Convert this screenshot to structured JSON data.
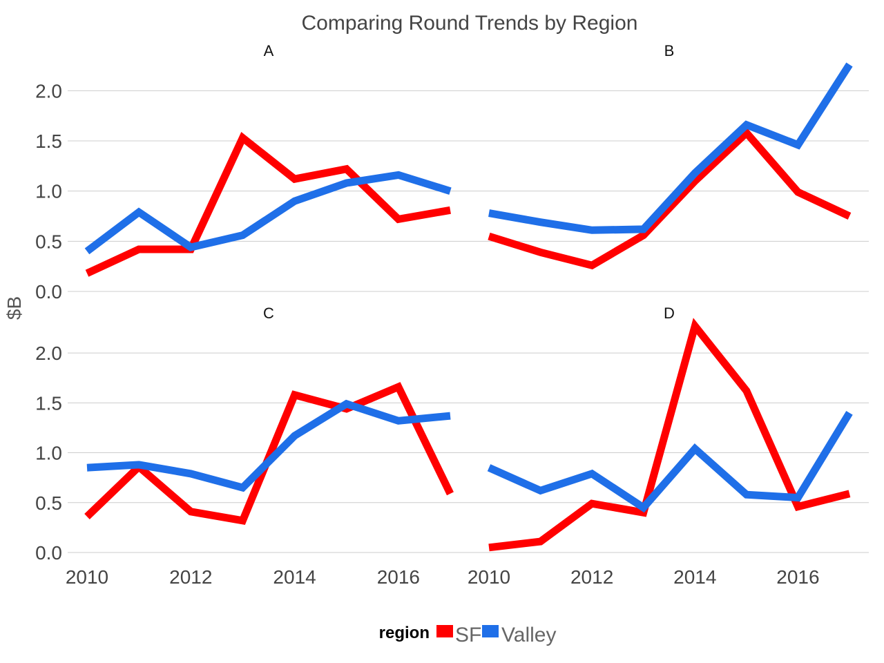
{
  "chart_data": {
    "type": "line",
    "title": "Comparing Round Trends by Region",
    "ylabel": "$B",
    "xlabel": "",
    "ylim": [
      0,
      2.25
    ],
    "yticks": [
      "0.0",
      "0.5",
      "1.0",
      "1.5",
      "2.0"
    ],
    "xticks": [
      "2010",
      "2012",
      "2014",
      "2016"
    ],
    "x": [
      2010,
      2011,
      2012,
      2013,
      2014,
      2015,
      2016,
      2017
    ],
    "legend": {
      "title": "region",
      "position": "bottom",
      "entries": [
        "SF",
        "Valley"
      ]
    },
    "colors": {
      "SF": "#ff0000",
      "Valley": "#1f6fe8"
    },
    "grid": true,
    "facets": [
      {
        "label": "A",
        "series": [
          {
            "name": "SF",
            "values": [
              0.18,
              0.42,
              0.42,
              1.53,
              1.12,
              1.22,
              0.72,
              0.81
            ]
          },
          {
            "name": "Valley",
            "values": [
              0.4,
              0.79,
              0.44,
              0.56,
              0.9,
              1.08,
              1.16,
              1.0
            ]
          }
        ]
      },
      {
        "label": "B",
        "series": [
          {
            "name": "SF",
            "values": [
              0.55,
              0.39,
              0.26,
              0.56,
              1.1,
              1.58,
              0.99,
              0.75
            ]
          },
          {
            "name": "Valley",
            "values": [
              0.78,
              0.69,
              0.61,
              0.62,
              1.18,
              1.66,
              1.46,
              2.26
            ]
          }
        ]
      },
      {
        "label": "C",
        "series": [
          {
            "name": "SF",
            "values": [
              0.36,
              0.86,
              0.41,
              0.32,
              1.58,
              1.44,
              1.66,
              0.59
            ]
          },
          {
            "name": "Valley",
            "values": [
              0.85,
              0.88,
              0.79,
              0.65,
              1.17,
              1.49,
              1.32,
              1.37
            ]
          }
        ]
      },
      {
        "label": "D",
        "series": [
          {
            "name": "SF",
            "values": [
              0.05,
              0.11,
              0.49,
              0.4,
              2.27,
              1.62,
              0.46,
              0.59
            ]
          },
          {
            "name": "Valley",
            "values": [
              0.85,
              0.62,
              0.79,
              0.45,
              1.04,
              0.58,
              0.55,
              1.4
            ]
          }
        ]
      }
    ]
  }
}
